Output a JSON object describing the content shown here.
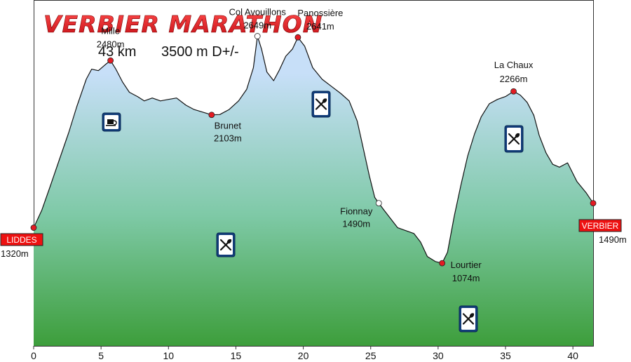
{
  "chart_data": {
    "type": "area",
    "title": "VERBIER MARATHON",
    "subtitle_distance": "43 km",
    "subtitle_elevation": "3500 m D+/-",
    "xlim": [
      0,
      41.5
    ],
    "ylim": [
      500,
      2900
    ],
    "x_ticks": [
      0,
      5,
      10,
      15,
      20,
      25,
      30,
      35,
      40
    ],
    "x_tick_labels": [
      "0",
      "5",
      "10",
      "15",
      "20",
      "25",
      "30",
      "35",
      "40"
    ],
    "grid": false,
    "profile": {
      "x": [
        0.0,
        0.6,
        1.2,
        1.9,
        2.6,
        3.2,
        3.9,
        4.3,
        4.8,
        5.3,
        5.7,
        6.1,
        6.6,
        7.1,
        7.7,
        8.2,
        8.8,
        9.4,
        10.0,
        10.6,
        11.3,
        11.9,
        12.6,
        13.2,
        13.8,
        14.5,
        15.2,
        15.8,
        16.3,
        16.6,
        16.9,
        17.3,
        17.8,
        18.2,
        18.7,
        19.2,
        19.6,
        20.1,
        20.7,
        21.4,
        22.1,
        22.8,
        23.4,
        24.0,
        24.5,
        24.9,
        25.3,
        25.6,
        26.0,
        26.5,
        27.0,
        27.6,
        28.2,
        28.7,
        29.2,
        29.8,
        30.3,
        30.7,
        31.2,
        31.7,
        32.2,
        32.7,
        33.2,
        33.8,
        34.4,
        35.0,
        35.6,
        36.1,
        36.6,
        37.1,
        37.5,
        38.0,
        38.5,
        39.0,
        39.6,
        40.3,
        41.0,
        41.5
      ],
      "y": [
        1320,
        1440,
        1600,
        1790,
        1980,
        2160,
        2350,
        2420,
        2410,
        2450,
        2480,
        2420,
        2330,
        2260,
        2230,
        2200,
        2220,
        2200,
        2210,
        2220,
        2170,
        2140,
        2120,
        2103,
        2105,
        2140,
        2200,
        2280,
        2430,
        2649,
        2560,
        2400,
        2340,
        2410,
        2510,
        2560,
        2641,
        2580,
        2430,
        2350,
        2300,
        2250,
        2200,
        2060,
        1850,
        1680,
        1530,
        1490,
        1440,
        1380,
        1320,
        1300,
        1280,
        1220,
        1120,
        1085,
        1074,
        1150,
        1400,
        1620,
        1820,
        1970,
        2090,
        2180,
        2210,
        2230,
        2266,
        2240,
        2190,
        2100,
        1960,
        1840,
        1760,
        1740,
        1770,
        1640,
        1560,
        1490
      ]
    },
    "checkpoints": [
      {
        "name": "LIDDES",
        "altitude": "1320m",
        "x": 0.0,
        "y": 1320,
        "kind": "endpoint"
      },
      {
        "name": "Mille",
        "altitude": "2480m",
        "x": 5.7,
        "y": 2480,
        "kind": "red"
      },
      {
        "name": "Brunet",
        "altitude": "2103m",
        "x": 13.2,
        "y": 2103,
        "kind": "red"
      },
      {
        "name": "Col Avouillons",
        "altitude": "2649m",
        "x": 16.6,
        "y": 2649,
        "kind": "white"
      },
      {
        "name": "Panossière",
        "altitude": "2641m",
        "x": 19.6,
        "y": 2641,
        "kind": "red"
      },
      {
        "name": "Fionnay",
        "altitude": "1490m",
        "x": 25.6,
        "y": 1490,
        "kind": "white"
      },
      {
        "name": "Lourtier",
        "altitude": "1074m",
        "x": 30.3,
        "y": 1074,
        "kind": "red"
      },
      {
        "name": "La Chaux",
        "altitude": "2266m",
        "x": 35.6,
        "y": 2266,
        "kind": "red"
      },
      {
        "name": "VERBIER",
        "altitude": "1490m",
        "x": 41.5,
        "y": 1490,
        "kind": "endpoint"
      }
    ],
    "services": [
      {
        "checkpoint": "Mille",
        "icon": "coffee-cup-icon"
      },
      {
        "checkpoint": "Brunet",
        "icon": "fork-knife-icon"
      },
      {
        "checkpoint": "Panossière",
        "icon": "fork-knife-icon"
      },
      {
        "checkpoint": "Lourtier",
        "icon": "fork-knife-icon"
      },
      {
        "checkpoint": "La Chaux",
        "icon": "fork-knife-icon"
      }
    ],
    "colors": {
      "title": "#e31b23",
      "area_top": "#c7dff8",
      "area_mid": "#7ec9a6",
      "area_bottom": "#3d9e3b",
      "profile_line": "#111111",
      "checkpoint_red": "#e31b23",
      "checkpoint_white": "#ffffff",
      "endpoint_box": "#ee1111",
      "service_icon_bg": "#123d7a"
    }
  }
}
